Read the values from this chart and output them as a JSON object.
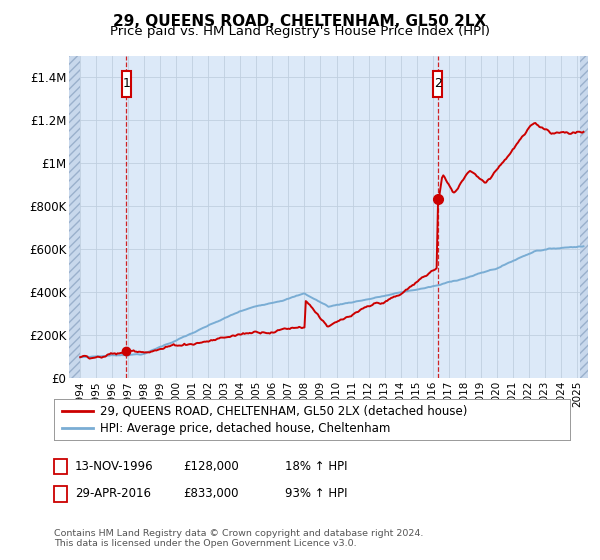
{
  "title": "29, QUEENS ROAD, CHELTENHAM, GL50 2LX",
  "subtitle": "Price paid vs. HM Land Registry's House Price Index (HPI)",
  "ylim": [
    0,
    1500000
  ],
  "yticks": [
    0,
    200000,
    400000,
    600000,
    800000,
    1000000,
    1200000,
    1400000
  ],
  "ytick_labels": [
    "£0",
    "£200K",
    "£400K",
    "£600K",
    "£800K",
    "£1M",
    "£1.2M",
    "£1.4M"
  ],
  "t1_year": 1996.87,
  "t1_price": 128000,
  "t2_year": 2016.32,
  "t2_price": 833000,
  "legend_line1": "29, QUEENS ROAD, CHELTENHAM, GL50 2LX (detached house)",
  "legend_line2": "HPI: Average price, detached house, Cheltenham",
  "footer1": "Contains HM Land Registry data © Crown copyright and database right 2024.",
  "footer2": "This data is licensed under the Open Government Licence v3.0.",
  "info1_date": "13-NOV-1996",
  "info1_price": "£128,000",
  "info1_pct": "18% ↑ HPI",
  "info2_date": "29-APR-2016",
  "info2_price": "£833,000",
  "info2_pct": "93% ↑ HPI",
  "line_color_red": "#cc0000",
  "line_color_blue": "#7aadd4",
  "bg_color": "#dce9f8",
  "hatch_bg": "#c8d8ec",
  "grid_color": "#c0cfe0",
  "box_color": "#cc0000",
  "title_fontsize": 11,
  "subtitle_fontsize": 9.5,
  "tick_fontsize": 8.5,
  "legend_fontsize": 8.5
}
